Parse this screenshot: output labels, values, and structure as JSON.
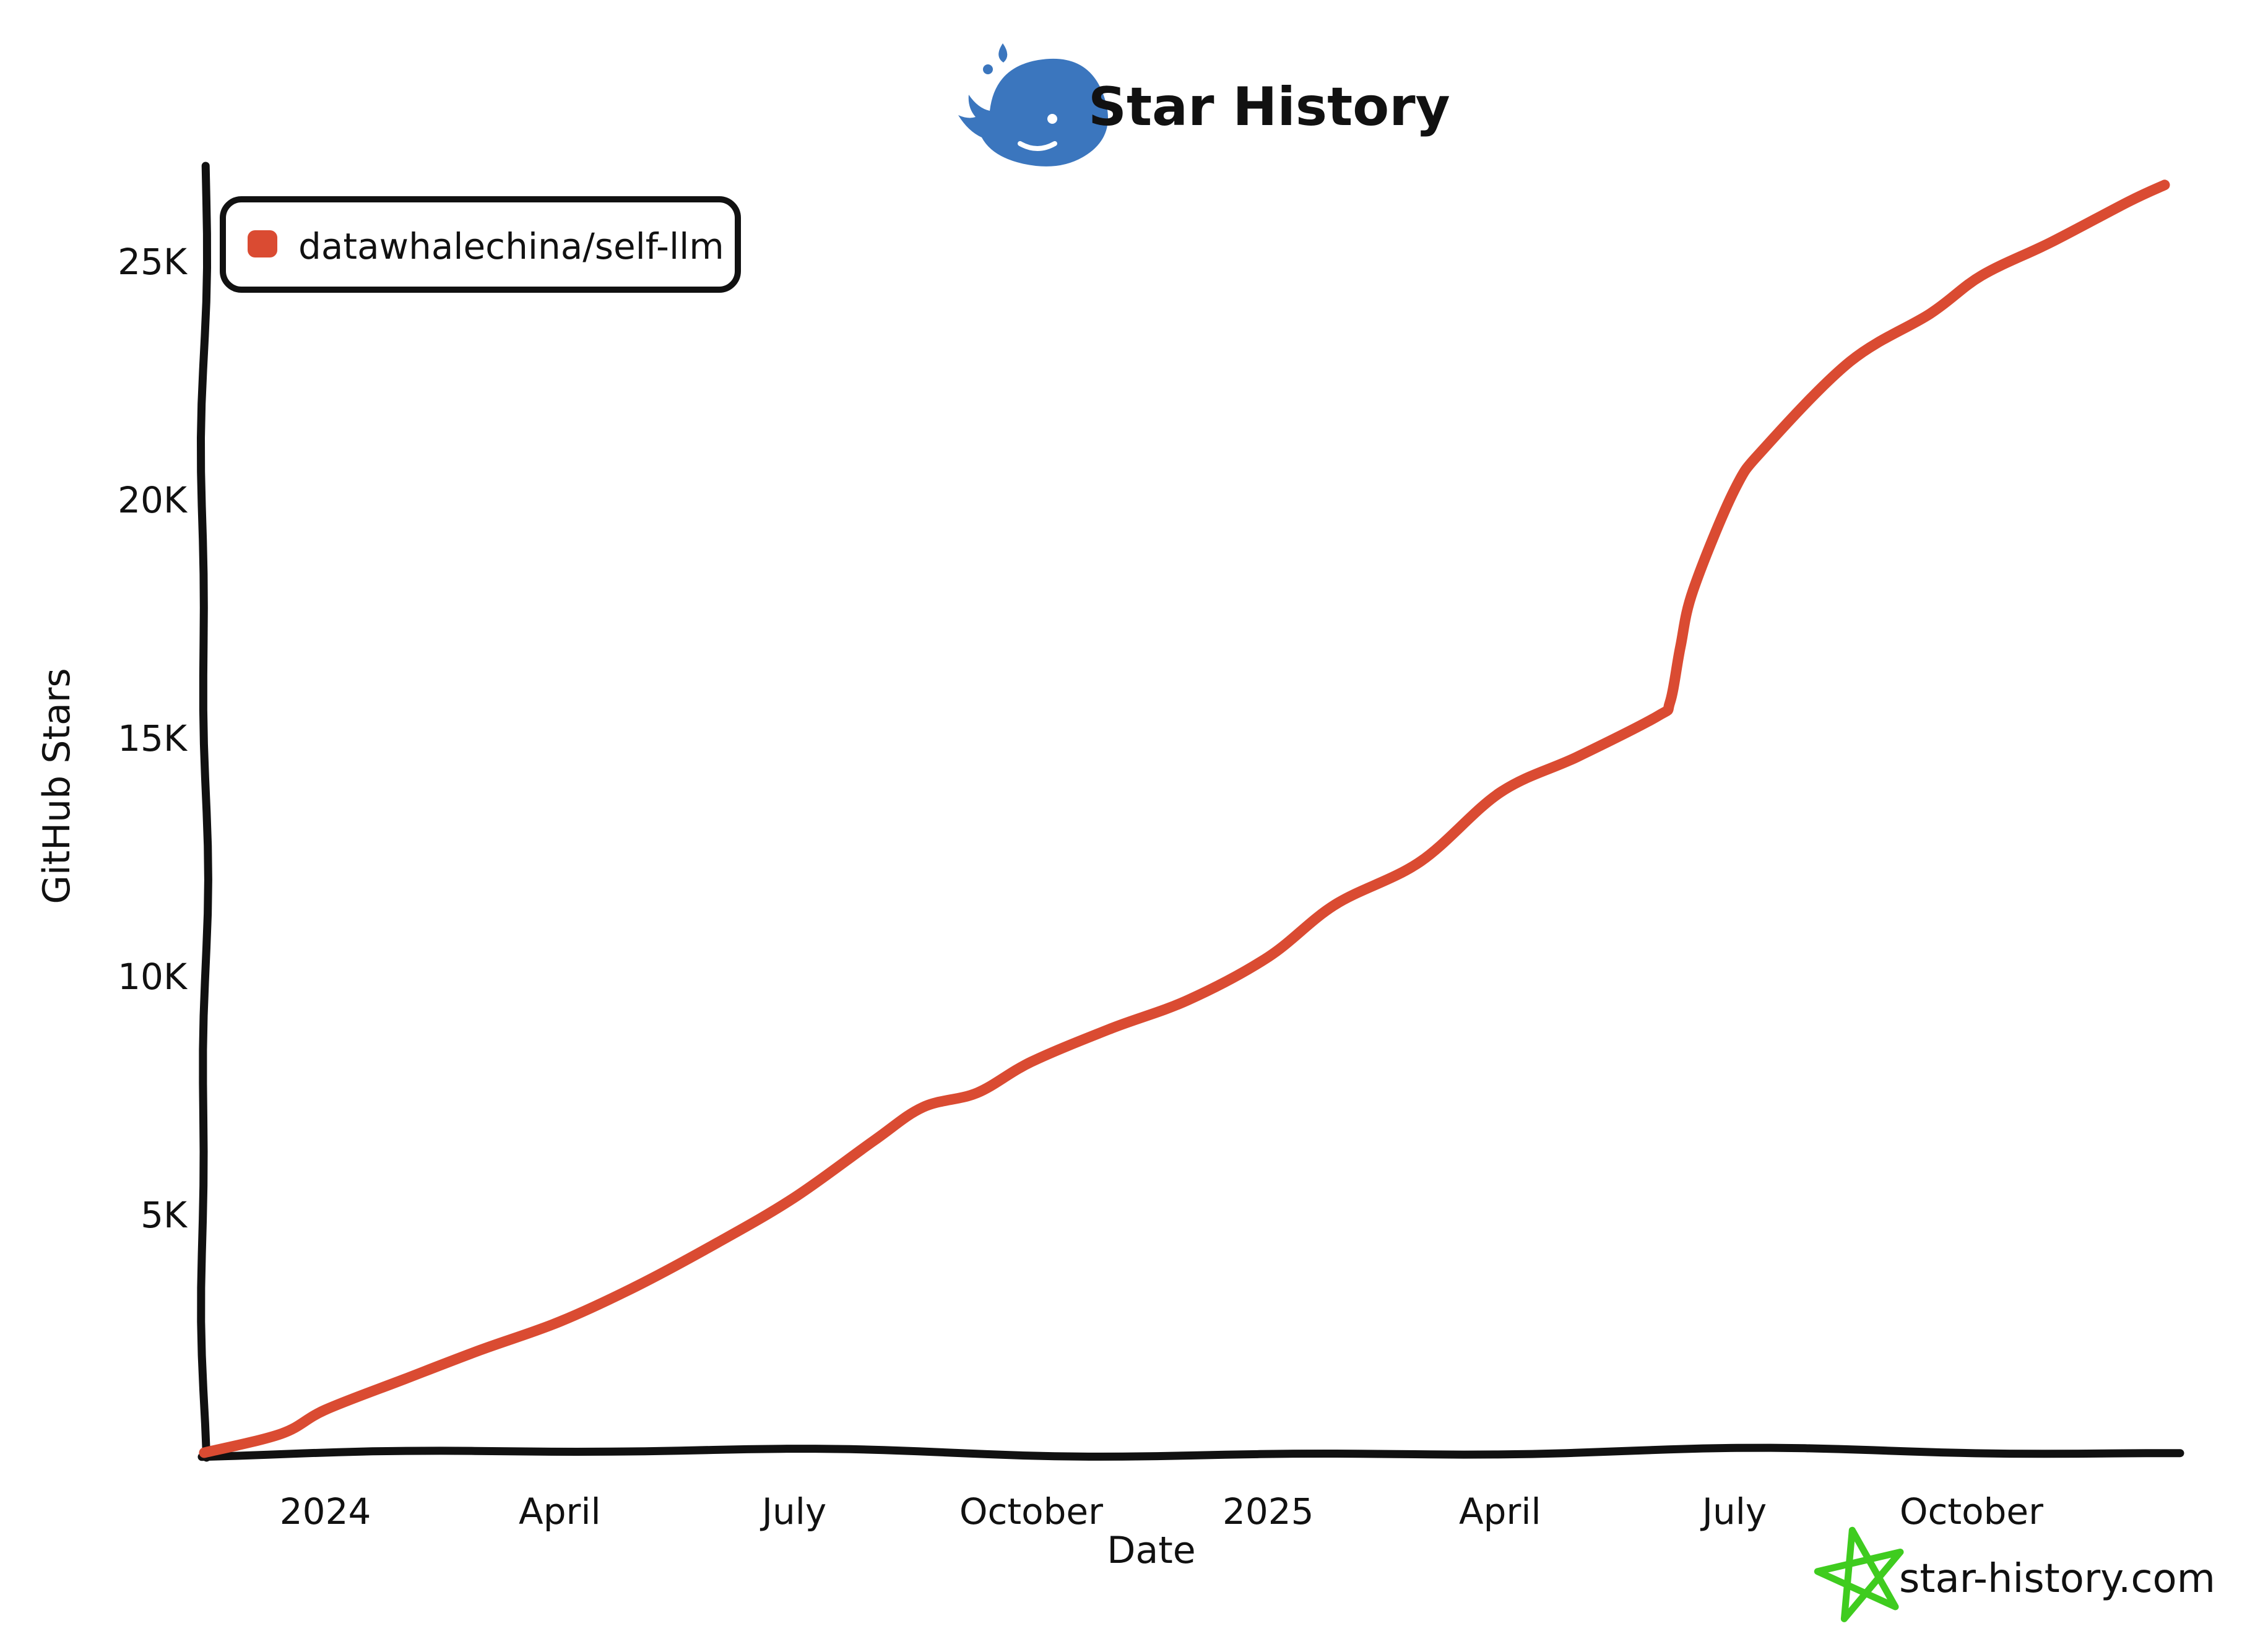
{
  "title": {
    "text": "Star History",
    "whale_color": "#3B76BE"
  },
  "legend": {
    "series_label": "datawhalechina/self-llm",
    "swatch_color": "#DA4B32"
  },
  "axes": {
    "y": {
      "label": "GitHub Stars",
      "ticks": [
        {
          "value": 25000,
          "label": "25K"
        },
        {
          "value": 20000,
          "label": "20K"
        },
        {
          "value": 15000,
          "label": "15K"
        },
        {
          "value": 10000,
          "label": "10K"
        },
        {
          "value": 5000,
          "label": "5K"
        }
      ]
    },
    "x": {
      "label": "Date",
      "ticks": [
        {
          "date": "2024-01-01",
          "label": "2024"
        },
        {
          "date": "2024-04-01",
          "label": "April"
        },
        {
          "date": "2024-07-01",
          "label": "July"
        },
        {
          "date": "2024-10-01",
          "label": "October"
        },
        {
          "date": "2025-01-01",
          "label": "2025"
        },
        {
          "date": "2025-04-01",
          "label": "April"
        },
        {
          "date": "2025-07-01",
          "label": "July"
        },
        {
          "date": "2025-10-01",
          "label": "October"
        }
      ]
    }
  },
  "footer": {
    "logo_text": "star-history.com",
    "star_color": "#3FCC1F",
    "text_color": "#8F8F8F"
  },
  "chart_data": {
    "type": "line",
    "title": "Star History",
    "xlabel": "Date",
    "ylabel": "GitHub Stars",
    "x_range": [
      "2023-11-15",
      "2025-12-15"
    ],
    "ylim": [
      0,
      27500
    ],
    "grid": false,
    "legend_position": "top-left",
    "line_color": "#DA4B32",
    "axis_color": "#111111",
    "series": [
      {
        "name": "datawhalechina/self-llm",
        "points": [
          [
            "2023-11-15",
            0
          ],
          [
            "2023-12-15",
            400
          ],
          [
            "2024-01-01",
            900
          ],
          [
            "2024-02-01",
            1550
          ],
          [
            "2024-03-01",
            2150
          ],
          [
            "2024-04-01",
            2750
          ],
          [
            "2024-05-01",
            3500
          ],
          [
            "2024-06-01",
            4400
          ],
          [
            "2024-07-01",
            5350
          ],
          [
            "2024-08-01",
            6550
          ],
          [
            "2024-08-20",
            7250
          ],
          [
            "2024-09-10",
            7550
          ],
          [
            "2024-10-01",
            8200
          ],
          [
            "2024-11-01",
            8900
          ],
          [
            "2024-12-01",
            9500
          ],
          [
            "2025-01-01",
            10400
          ],
          [
            "2025-01-27",
            11500
          ],
          [
            "2025-03-01",
            12400
          ],
          [
            "2025-04-01",
            13850
          ],
          [
            "2025-05-01",
            14600
          ],
          [
            "2025-06-01",
            15450
          ],
          [
            "2025-06-06",
            15750
          ],
          [
            "2025-06-10",
            16900
          ],
          [
            "2025-06-15",
            18100
          ],
          [
            "2025-07-01",
            20200
          ],
          [
            "2025-07-13",
            21100
          ],
          [
            "2025-08-15",
            22900
          ],
          [
            "2025-09-15",
            23900
          ],
          [
            "2025-10-05",
            24700
          ],
          [
            "2025-11-01",
            25400
          ],
          [
            "2025-12-01",
            26250
          ],
          [
            "2025-12-15",
            26600
          ]
        ]
      }
    ]
  }
}
